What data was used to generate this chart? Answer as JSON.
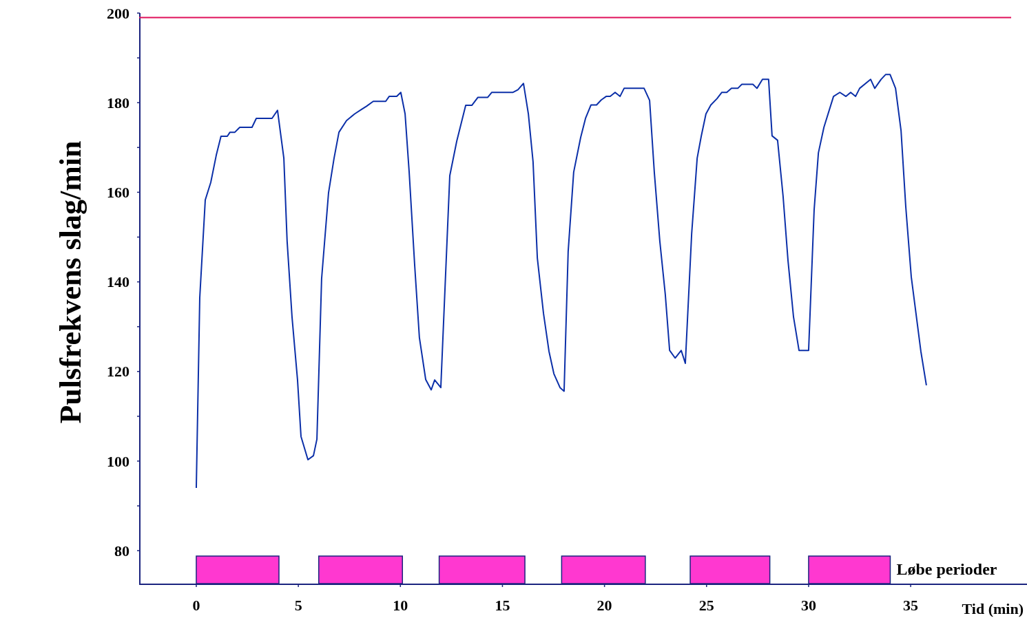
{
  "chart_data": {
    "type": "line",
    "xlabel": "Tid (min)",
    "ylabel": "Pulsfrekvens slag/min",
    "x": [
      0,
      0.17,
      0.44,
      0.71,
      0.98,
      1.21,
      1.52,
      1.65,
      1.89,
      2.13,
      2.73,
      2.94,
      3.71,
      3.98,
      4.29,
      4.45,
      4.69,
      4.96,
      5.13,
      5.47,
      5.74,
      5.91,
      6.14,
      6.48,
      6.75,
      6.99,
      7.36,
      7.76,
      8.1,
      8.34,
      8.67,
      9.28,
      9.45,
      9.82,
      10.02,
      10.23,
      10.43,
      10.7,
      10.93,
      11.24,
      11.51,
      11.68,
      11.98,
      12.42,
      12.76,
      13.2,
      13.5,
      13.8,
      14.28,
      14.48,
      15.52,
      15.76,
      16.03,
      16.27,
      16.5,
      16.71,
      17.01,
      17.28,
      17.52,
      17.82,
      18.02,
      18.22,
      18.49,
      18.83,
      19.07,
      19.34,
      19.61,
      19.84,
      20.08,
      20.28,
      20.52,
      20.76,
      20.96,
      21.94,
      22.21,
      22.44,
      22.71,
      22.98,
      23.19,
      23.46,
      23.76,
      23.96,
      24.27,
      24.54,
      24.74,
      24.97,
      25.21,
      25.51,
      25.75,
      25.99,
      26.22,
      26.53,
      26.73,
      27.27,
      27.47,
      27.74,
      28.04,
      28.21,
      28.48,
      28.75,
      28.99,
      29.26,
      29.53,
      30,
      30.27,
      30.48,
      30.75,
      31.22,
      31.53,
      31.83,
      32.06,
      32.3,
      32.5,
      33.04,
      33.24,
      33.55,
      33.78,
      33.99,
      34.26,
      34.53,
      34.76,
      35.03,
      35.5,
      35.77
    ],
    "series": [
      {
        "color": "#0b2fa8",
        "values": [
          94,
          136.5,
          158.3,
          162.2,
          168.3,
          172.5,
          172.5,
          173.4,
          173.4,
          174.5,
          174.5,
          176.5,
          176.5,
          178.3,
          167.6,
          149.1,
          132.2,
          118.1,
          105.5,
          100.3,
          101.2,
          104.9,
          140.7,
          159.9,
          167.6,
          173.4,
          176,
          177.5,
          178.5,
          179.2,
          180.3,
          180.3,
          181.4,
          181.4,
          182.3,
          177.5,
          164.5,
          143.7,
          127.6,
          118.2,
          115.9,
          118.1,
          116.4,
          163.7,
          171.4,
          179.4,
          179.4,
          181.2,
          181.2,
          182.3,
          182.3,
          182.9,
          184.3,
          177.5,
          166.8,
          145.3,
          133,
          124.5,
          119.5,
          116.4,
          115.6,
          146.8,
          164.5,
          172.2,
          176.5,
          179.5,
          179.5,
          180.6,
          181.4,
          181.4,
          182.3,
          181.4,
          183.2,
          183.2,
          180.5,
          164.5,
          149.1,
          137.1,
          124.7,
          123,
          124.7,
          121.8,
          150.7,
          167.6,
          172.5,
          177.5,
          179.5,
          180.9,
          182.3,
          182.3,
          183.2,
          183.2,
          184.1,
          184.1,
          183.2,
          185.2,
          185.2,
          172.6,
          171.6,
          159.1,
          144.8,
          132.2,
          124.7,
          124.7,
          156,
          168.8,
          174.5,
          181.4,
          182.3,
          181.4,
          182.3,
          181.4,
          183.2,
          185.2,
          183.2,
          185.2,
          186.3,
          186.3,
          183.2,
          173.7,
          156.8,
          141.1,
          124.5,
          116.9
        ]
      }
    ],
    "xlim": [
      -2.8,
      40.7
    ],
    "xticks": [
      0,
      5,
      10,
      15,
      20,
      25,
      30,
      35
    ],
    "ylim": [
      72.5,
      200
    ],
    "yticks": [
      80,
      {
        "value": 90,
        "label": null
      },
      100,
      {
        "value": 110,
        "label": null
      },
      120,
      {
        "value": 130,
        "label": null
      },
      140,
      {
        "value": 150,
        "label": null
      },
      160,
      {
        "value": 170,
        "label": null
      },
      180,
      {
        "value": 190,
        "label": null
      },
      200
    ],
    "ref_lines": [
      {
        "axis": "y",
        "value": 199,
        "color": "#e0105a"
      }
    ],
    "bands": [
      {
        "axis": "x",
        "from": 0,
        "to": 4.05,
        "color": "#ff38d0"
      },
      {
        "axis": "x",
        "from": 6,
        "to": 10.1,
        "color": "#ff38d0"
      },
      {
        "axis": "x",
        "from": 11.9,
        "to": 16.1,
        "color": "#ff38d0"
      },
      {
        "axis": "x",
        "from": 17.9,
        "to": 22,
        "color": "#ff38d0"
      },
      {
        "axis": "x",
        "from": 24.2,
        "to": 28.1,
        "color": "#ff38d0"
      },
      {
        "axis": "x",
        "from": 30,
        "to": 34,
        "color": "#ff38d0",
        "label": "Løbe perioder"
      }
    ],
    "grid": false,
    "marker": "none",
    "line_style": "solid"
  }
}
